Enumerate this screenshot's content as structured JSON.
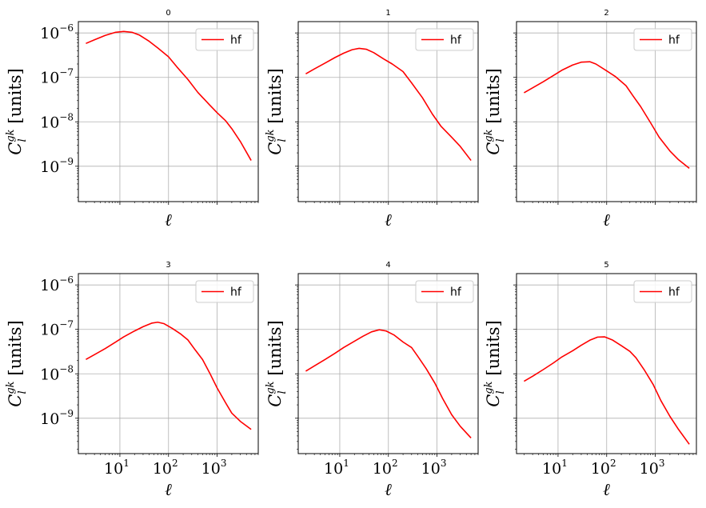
{
  "chart_data": [
    {
      "type": "line",
      "title": "0",
      "xlabel": "ℓ",
      "ylabel_base": "C",
      "ylabel_sup": "gk",
      "ylabel_sub": "l",
      "ylabel_units": "[units]",
      "xscale": "log",
      "yscale": "log",
      "xlim": [
        1.4,
        7000
      ],
      "ylim": [
        1.6e-10,
        1.8e-06
      ],
      "grid": true,
      "legend_placement": "top-right",
      "series": [
        {
          "name": "hf",
          "color": "#ff0000",
          "x": [
            2,
            3,
            5,
            8,
            12,
            18,
            25,
            40,
            60,
            100,
            150,
            250,
            400,
            700,
            1000,
            1500,
            2000,
            3000,
            5000
          ],
          "y": [
            5.8e-07,
            7e-07,
            8.8e-07,
            1.03e-06,
            1.08e-06,
            1.03e-06,
            9e-07,
            6.5e-07,
            4.6e-07,
            2.9e-07,
            1.7e-07,
            9e-08,
            4.6e-08,
            2.4e-08,
            1.6e-08,
            1.05e-08,
            7e-09,
            3.6e-09,
            1.35e-09
          ]
        }
      ]
    },
    {
      "type": "line",
      "title": "1",
      "xlabel": "ℓ",
      "ylabel_base": "C",
      "ylabel_sup": "gk",
      "ylabel_sub": "l",
      "ylabel_units": "[units]",
      "xscale": "log",
      "yscale": "log",
      "xlim": [
        1.4,
        7000
      ],
      "ylim": [
        1.6e-10,
        1.8e-06
      ],
      "grid": true,
      "legend_placement": "top-right",
      "series": [
        {
          "name": "hf",
          "color": "#ff0000",
          "x": [
            2,
            3,
            5,
            8,
            12,
            18,
            25,
            35,
            50,
            80,
            120,
            200,
            300,
            500,
            800,
            1200,
            2000,
            3000,
            5000
          ],
          "y": [
            1.2e-07,
            1.55e-07,
            2.1e-07,
            2.8e-07,
            3.5e-07,
            4.2e-07,
            4.5e-07,
            4.3e-07,
            3.6e-07,
            2.6e-07,
            2e-07,
            1.35e-07,
            7.5e-08,
            3.5e-08,
            1.5e-08,
            8e-09,
            4.5e-09,
            2.8e-09,
            1.35e-09
          ]
        }
      ]
    },
    {
      "type": "line",
      "title": "2",
      "xlabel": "ℓ",
      "ylabel_base": "C",
      "ylabel_sup": "gk",
      "ylabel_sub": "l",
      "ylabel_units": "[units]",
      "xscale": "log",
      "yscale": "log",
      "xlim": [
        1.4,
        7000
      ],
      "ylim": [
        1.6e-10,
        1.8e-06
      ],
      "grid": true,
      "legend_placement": "top-right",
      "series": [
        {
          "name": "hf",
          "color": "#ff0000",
          "x": [
            2,
            3,
            5,
            8,
            12,
            20,
            30,
            45,
            60,
            100,
            150,
            250,
            350,
            500,
            800,
            1200,
            2000,
            3000,
            5000
          ],
          "y": [
            4.5e-08,
            5.8e-08,
            8e-08,
            1.1e-07,
            1.45e-07,
            1.9e-07,
            2.2e-07,
            2.25e-07,
            2e-07,
            1.4e-07,
            1.05e-07,
            6.5e-08,
            3.8e-08,
            2.2e-08,
            9.5e-09,
            4.5e-09,
            2.2e-09,
            1.4e-09,
            9e-10
          ]
        }
      ]
    },
    {
      "type": "line",
      "title": "3",
      "xlabel": "ℓ",
      "ylabel_base": "C",
      "ylabel_sup": "gk",
      "ylabel_sub": "l",
      "ylabel_units": "[units]",
      "xscale": "log",
      "yscale": "log",
      "xlim": [
        1.4,
        7000
      ],
      "ylim": [
        1.6e-10,
        1.8e-06
      ],
      "grid": true,
      "legend_placement": "top-right",
      "series": [
        {
          "name": "hf",
          "color": "#ff0000",
          "x": [
            2,
            3,
            5,
            8,
            12,
            20,
            30,
            45,
            60,
            80,
            120,
            180,
            250,
            350,
            500,
            700,
            1000,
            1500,
            2000,
            3000,
            5000
          ],
          "y": [
            2.1e-08,
            2.7e-08,
            3.7e-08,
            5.1e-08,
            6.8e-08,
            9.2e-08,
            1.15e-07,
            1.38e-07,
            1.45e-07,
            1.35e-07,
            1.05e-07,
            7.8e-08,
            5.8e-08,
            3.5e-08,
            2.1e-08,
            1.05e-08,
            4.8e-09,
            2.2e-09,
            1.3e-09,
            8.5e-10,
            5.6e-10
          ]
        }
      ]
    },
    {
      "type": "line",
      "title": "4",
      "xlabel": "ℓ",
      "ylabel_base": "C",
      "ylabel_sup": "gk",
      "ylabel_sub": "l",
      "ylabel_units": "[units]",
      "xscale": "log",
      "yscale": "log",
      "xlim": [
        1.4,
        7000
      ],
      "ylim": [
        1.6e-10,
        1.8e-06
      ],
      "grid": true,
      "legend_placement": "top-right",
      "series": [
        {
          "name": "hf",
          "color": "#ff0000",
          "x": [
            2,
            3,
            5,
            8,
            12,
            20,
            30,
            45,
            65,
            90,
            130,
            200,
            300,
            400,
            600,
            900,
            1300,
            2000,
            3000,
            5000
          ],
          "y": [
            1.15e-08,
            1.5e-08,
            2.1e-08,
            2.9e-08,
            3.9e-08,
            5.4e-08,
            7e-08,
            8.8e-08,
            9.8e-08,
            9.2e-08,
            7.5e-08,
            5.2e-08,
            3.9e-08,
            2.5e-08,
            1.3e-08,
            6.2e-09,
            2.8e-09,
            1.2e-09,
            6.6e-10,
            3.6e-10
          ]
        }
      ]
    },
    {
      "type": "line",
      "title": "5",
      "xlabel": "ℓ",
      "ylabel_base": "C",
      "ylabel_sup": "gk",
      "ylabel_sub": "l",
      "ylabel_units": "[units]",
      "xscale": "log",
      "yscale": "log",
      "xlim": [
        1.4,
        7000
      ],
      "ylim": [
        1.6e-10,
        1.8e-06
      ],
      "grid": true,
      "legend_placement": "top-right",
      "series": [
        {
          "name": "hf",
          "color": "#ff0000",
          "x": [
            2,
            3,
            5,
            8,
            12,
            20,
            30,
            45,
            65,
            90,
            130,
            200,
            300,
            400,
            600,
            900,
            1300,
            2000,
            3000,
            5000
          ],
          "y": [
            6.8e-09,
            8.8e-09,
            1.25e-08,
            1.75e-08,
            2.4e-08,
            3.3e-08,
            4.4e-08,
            5.7e-08,
            6.7e-08,
            6.8e-08,
            5.8e-08,
            4.3e-08,
            3.2e-08,
            2.3e-08,
            1.2e-08,
            5.8e-09,
            2.5e-09,
            1.1e-09,
            5.6e-10,
            2.6e-10
          ]
        }
      ]
    }
  ],
  "y_ticks": [
    {
      "base": "10",
      "exp": "−6",
      "value": 1e-06
    },
    {
      "base": "10",
      "exp": "−7",
      "value": 1e-07
    },
    {
      "base": "10",
      "exp": "−8",
      "value": 1e-08
    },
    {
      "base": "10",
      "exp": "−9",
      "value": 1e-09
    }
  ],
  "x_ticks": [
    {
      "base": "10",
      "exp": "1",
      "value": 10
    },
    {
      "base": "10",
      "exp": "2",
      "value": 100
    },
    {
      "base": "10",
      "exp": "3",
      "value": 1000
    }
  ]
}
